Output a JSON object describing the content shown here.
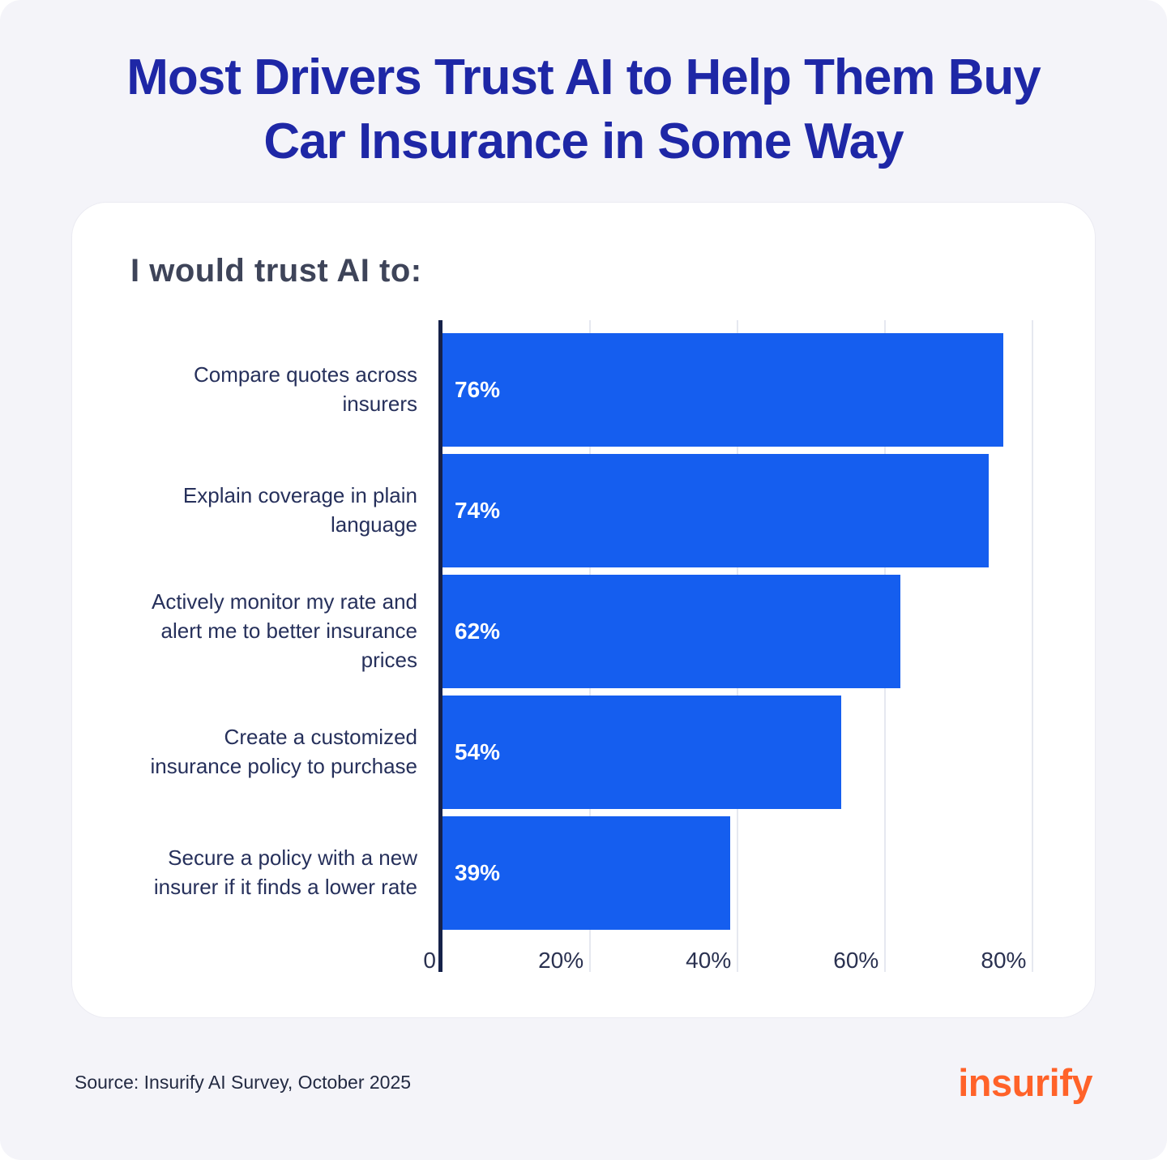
{
  "header": {
    "title_line1": "Most Drivers Trust AI to Help Them Buy",
    "title_line2": "Car Insurance in Some Way"
  },
  "chart_data": {
    "type": "bar",
    "orientation": "horizontal",
    "title": "I would trust AI to:",
    "categories": [
      "Compare quotes across insurers",
      "Explain coverage in plain language",
      "Actively monitor my rate and alert me to better insurance prices",
      "Create a customized insurance policy to purchase",
      "Secure a policy with a new insurer if it finds a lower rate"
    ],
    "values": [
      76,
      74,
      62,
      54,
      39
    ],
    "value_labels": [
      "76%",
      "74%",
      "62%",
      "54%",
      "39%"
    ],
    "xlabel": "",
    "ylabel": "",
    "xlim": [
      0,
      80.5
    ],
    "xticks": [
      {
        "value": 0,
        "label": "0"
      },
      {
        "value": 20,
        "label": "20%"
      },
      {
        "value": 40,
        "label": "40%"
      },
      {
        "value": 60,
        "label": "60%"
      },
      {
        "value": 80,
        "label": "80%"
      }
    ],
    "grid": true,
    "legend": false,
    "bar_color": "#155EEF"
  },
  "footer": {
    "source": "Source: Insurify AI Survey, October 2025",
    "brand": "insurify"
  },
  "colors": {
    "background": "#F4F4F9",
    "card": "#FFFFFF",
    "title_navy": "#1E27A6",
    "bar_blue": "#155EEF",
    "axis_navy": "#16224A",
    "gridline": "#E6E8F0",
    "heading_gray": "#3E4459",
    "category_label": "#26305B",
    "tick_label": "#2A3150",
    "logo_orange": "#FF6229"
  }
}
